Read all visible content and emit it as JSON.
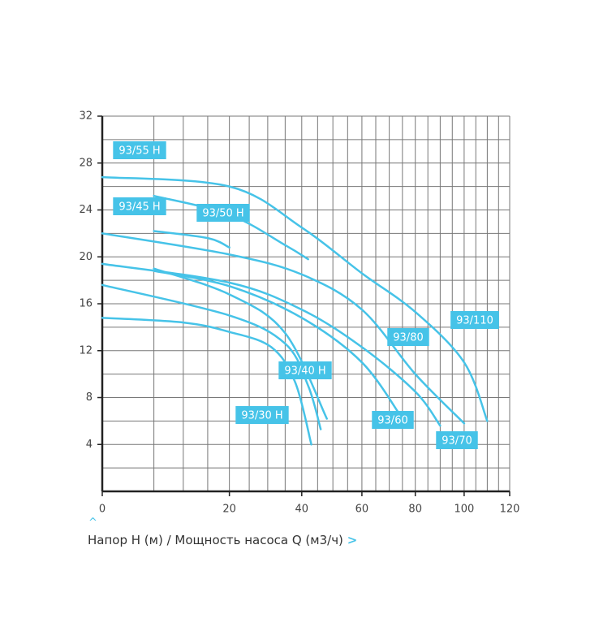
{
  "chart_data": {
    "type": "line",
    "x_label": "Напор H (м) / Мощность насоса Q (м3/ч)",
    "xlim": [
      0,
      120
    ],
    "xticks": [
      0,
      20,
      40,
      60,
      80,
      100,
      120
    ],
    "xscale": "power",
    "ylim": [
      0,
      32
    ],
    "yticks": [
      4,
      8,
      12,
      16,
      20,
      24,
      28,
      32
    ],
    "grid": true,
    "xgrid": [
      5,
      10,
      15,
      20,
      25,
      30,
      35,
      40,
      45,
      50,
      55,
      60,
      65,
      70,
      75,
      80,
      85,
      90,
      95,
      100,
      105,
      110,
      115,
      120
    ],
    "ygrid": [
      2,
      4,
      6,
      8,
      10,
      12,
      14,
      16,
      18,
      20,
      22,
      24,
      26,
      28,
      30,
      32
    ],
    "series": [
      {
        "name": "93/55 H",
        "color": "#46c3e8",
        "x": [
          5,
          20,
          35,
          42
        ],
        "values": [
          25.2,
          23.6,
          21,
          19.8
        ]
      },
      {
        "name": "93/45 H",
        "color": "#46c3e8",
        "x": [
          5,
          20,
          35,
          48
        ],
        "values": [
          19,
          16.8,
          13.5,
          6.2
        ]
      },
      {
        "name": "93/50 H",
        "color": "#46c3e8",
        "x": [
          5,
          15,
          20
        ],
        "values": [
          22.2,
          21.6,
          20.8
        ]
      },
      {
        "name": "93/110",
        "color": "#46c3e8",
        "x": [
          0,
          20,
          40,
          60,
          80,
          100,
          110
        ],
        "values": [
          26.8,
          26,
          22.5,
          18.6,
          15.3,
          11,
          6
        ]
      },
      {
        "name": "93/80",
        "color": "#46c3e8",
        "x": [
          0,
          20,
          40,
          60,
          80,
          100
        ],
        "values": [
          22,
          20.2,
          18.5,
          15.5,
          10,
          5.8
        ]
      },
      {
        "name": "93/40 H",
        "color": "#46c3e8",
        "x": [
          0,
          20,
          35,
          42,
          46
        ],
        "values": [
          17.6,
          15,
          12.6,
          9,
          5.3
        ]
      },
      {
        "name": "93/30 H",
        "color": "#46c3e8",
        "x": [
          0,
          10,
          20,
          31,
          38,
          43
        ],
        "values": [
          14.8,
          14.4,
          13.6,
          12.3,
          9.3,
          4
        ]
      },
      {
        "name": "93/60",
        "color": "#46c3e8",
        "x": [
          5,
          20,
          40,
          60,
          75
        ],
        "values": [
          18.8,
          17.5,
          14.8,
          11,
          6.2
        ]
      },
      {
        "name": "93/70",
        "color": "#46c3e8",
        "x": [
          0,
          20,
          40,
          60,
          80,
          90
        ],
        "values": [
          19.4,
          17.8,
          15.5,
          12.3,
          8.5,
          5.6
        ]
      }
    ]
  }
}
